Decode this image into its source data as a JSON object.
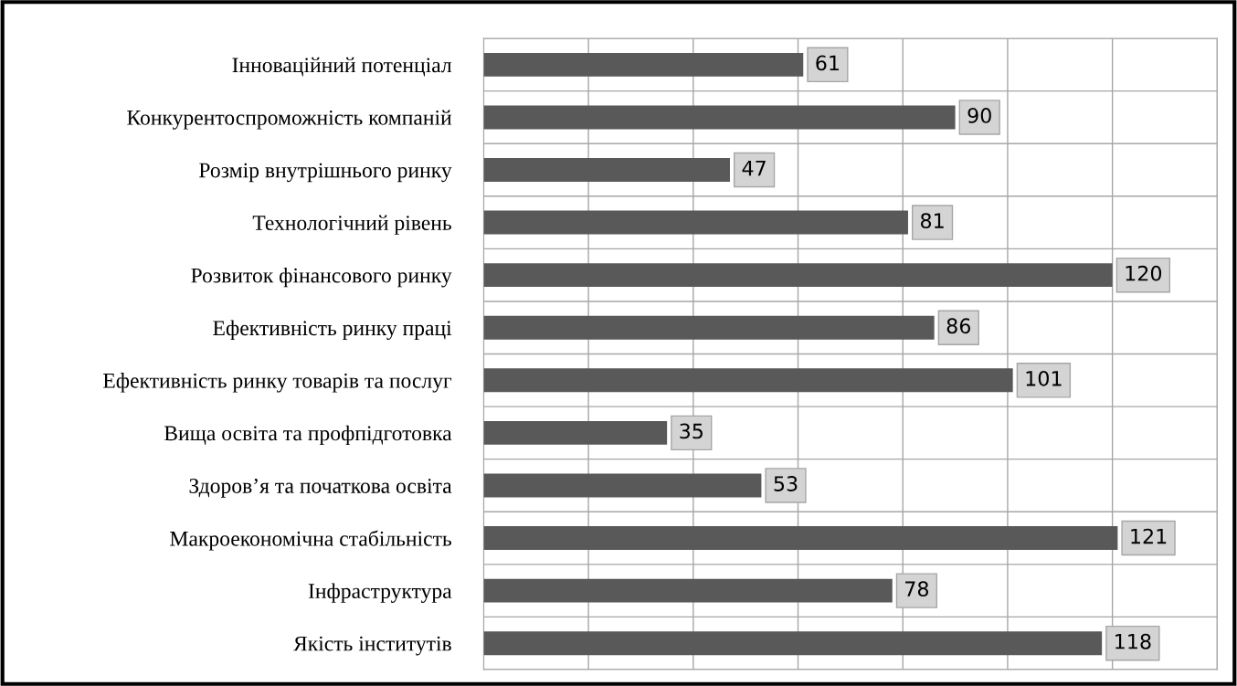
{
  "chart_data": {
    "type": "bar",
    "orientation": "horizontal",
    "categories": [
      "Інноваційний потенціал",
      "Конкурентоспроможність компаній",
      "Розмір внутрішнього ринку",
      "Технологічний рівень",
      "Розвиток фінансового ринку",
      "Ефективність ринку праці",
      "Ефективність ринку товарів та послуг",
      "Вища освіта та профпідготовка",
      "Здоров’я та початкова освіта",
      "Макроекономічна стабільність",
      "Інфраструктура",
      "Якість інститутів"
    ],
    "values": [
      61,
      90,
      47,
      81,
      120,
      86,
      101,
      35,
      53,
      121,
      78,
      118
    ],
    "color": "#595959",
    "xlim": [
      0,
      140
    ],
    "xticks": [
      {
        "value": 0,
        "label": null
      },
      {
        "value": 20,
        "label": null
      },
      {
        "value": 40,
        "label": null
      },
      {
        "value": 60,
        "label": null
      },
      {
        "value": 80,
        "label": null
      },
      {
        "value": 100,
        "label": null
      },
      {
        "value": 120,
        "label": null
      },
      {
        "value": 140,
        "label": null
      }
    ],
    "tick_labels": "y",
    "grid": true,
    "data_labels": true
  }
}
